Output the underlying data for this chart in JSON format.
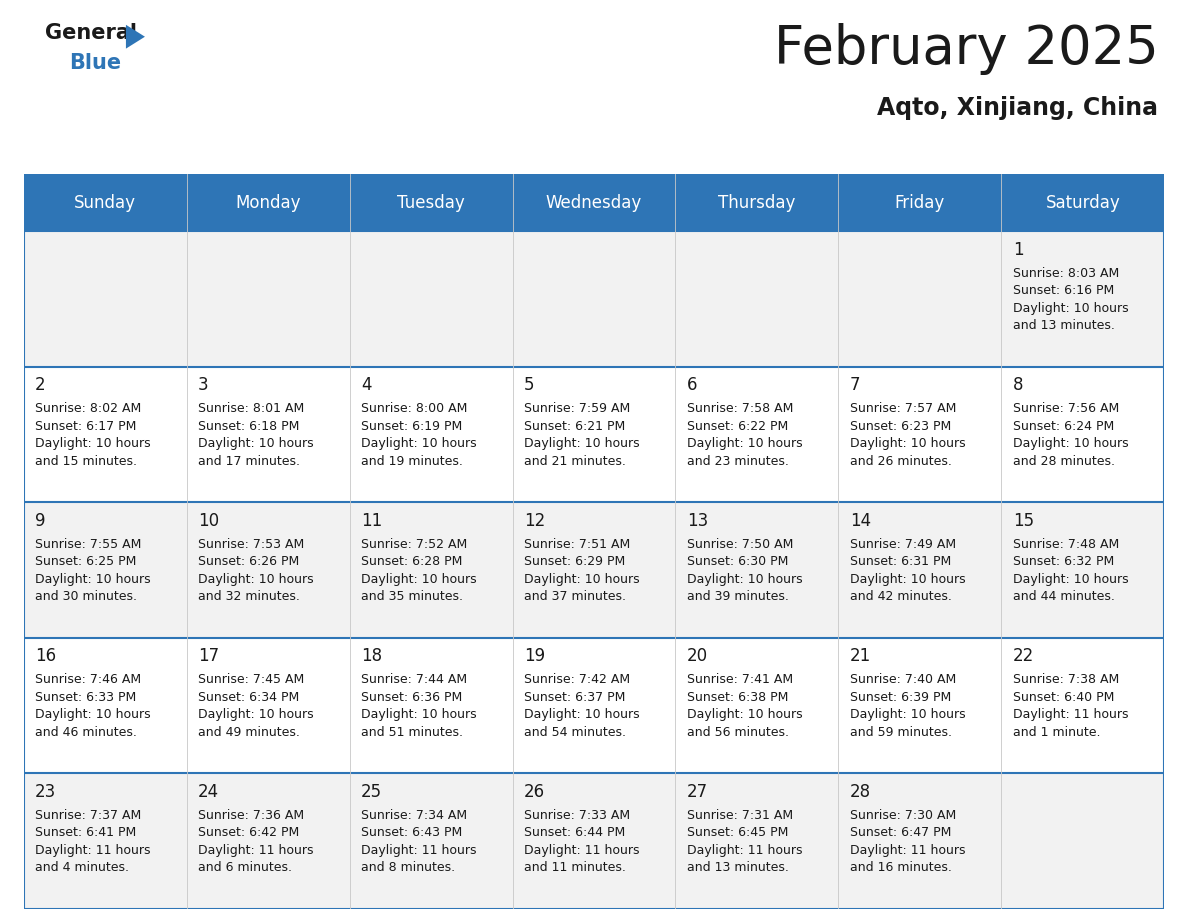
{
  "title": "February 2025",
  "subtitle": "Aqto, Xinjiang, China",
  "header_bg": "#2E75B6",
  "header_text_color": "#FFFFFF",
  "cell_bg": [
    "#F2F2F2",
    "#FFFFFF",
    "#F2F2F2",
    "#FFFFFF",
    "#F2F2F2"
  ],
  "day_names": [
    "Sunday",
    "Monday",
    "Tuesday",
    "Wednesday",
    "Thursday",
    "Friday",
    "Saturday"
  ],
  "days": [
    {
      "day": 1,
      "col": 6,
      "row": 0,
      "sunrise": "8:03 AM",
      "sunset": "6:16 PM",
      "daylight": "10 hours\nand 13 minutes."
    },
    {
      "day": 2,
      "col": 0,
      "row": 1,
      "sunrise": "8:02 AM",
      "sunset": "6:17 PM",
      "daylight": "10 hours\nand 15 minutes."
    },
    {
      "day": 3,
      "col": 1,
      "row": 1,
      "sunrise": "8:01 AM",
      "sunset": "6:18 PM",
      "daylight": "10 hours\nand 17 minutes."
    },
    {
      "day": 4,
      "col": 2,
      "row": 1,
      "sunrise": "8:00 AM",
      "sunset": "6:19 PM",
      "daylight": "10 hours\nand 19 minutes."
    },
    {
      "day": 5,
      "col": 3,
      "row": 1,
      "sunrise": "7:59 AM",
      "sunset": "6:21 PM",
      "daylight": "10 hours\nand 21 minutes."
    },
    {
      "day": 6,
      "col": 4,
      "row": 1,
      "sunrise": "7:58 AM",
      "sunset": "6:22 PM",
      "daylight": "10 hours\nand 23 minutes."
    },
    {
      "day": 7,
      "col": 5,
      "row": 1,
      "sunrise": "7:57 AM",
      "sunset": "6:23 PM",
      "daylight": "10 hours\nand 26 minutes."
    },
    {
      "day": 8,
      "col": 6,
      "row": 1,
      "sunrise": "7:56 AM",
      "sunset": "6:24 PM",
      "daylight": "10 hours\nand 28 minutes."
    },
    {
      "day": 9,
      "col": 0,
      "row": 2,
      "sunrise": "7:55 AM",
      "sunset": "6:25 PM",
      "daylight": "10 hours\nand 30 minutes."
    },
    {
      "day": 10,
      "col": 1,
      "row": 2,
      "sunrise": "7:53 AM",
      "sunset": "6:26 PM",
      "daylight": "10 hours\nand 32 minutes."
    },
    {
      "day": 11,
      "col": 2,
      "row": 2,
      "sunrise": "7:52 AM",
      "sunset": "6:28 PM",
      "daylight": "10 hours\nand 35 minutes."
    },
    {
      "day": 12,
      "col": 3,
      "row": 2,
      "sunrise": "7:51 AM",
      "sunset": "6:29 PM",
      "daylight": "10 hours\nand 37 minutes."
    },
    {
      "day": 13,
      "col": 4,
      "row": 2,
      "sunrise": "7:50 AM",
      "sunset": "6:30 PM",
      "daylight": "10 hours\nand 39 minutes."
    },
    {
      "day": 14,
      "col": 5,
      "row": 2,
      "sunrise": "7:49 AM",
      "sunset": "6:31 PM",
      "daylight": "10 hours\nand 42 minutes."
    },
    {
      "day": 15,
      "col": 6,
      "row": 2,
      "sunrise": "7:48 AM",
      "sunset": "6:32 PM",
      "daylight": "10 hours\nand 44 minutes."
    },
    {
      "day": 16,
      "col": 0,
      "row": 3,
      "sunrise": "7:46 AM",
      "sunset": "6:33 PM",
      "daylight": "10 hours\nand 46 minutes."
    },
    {
      "day": 17,
      "col": 1,
      "row": 3,
      "sunrise": "7:45 AM",
      "sunset": "6:34 PM",
      "daylight": "10 hours\nand 49 minutes."
    },
    {
      "day": 18,
      "col": 2,
      "row": 3,
      "sunrise": "7:44 AM",
      "sunset": "6:36 PM",
      "daylight": "10 hours\nand 51 minutes."
    },
    {
      "day": 19,
      "col": 3,
      "row": 3,
      "sunrise": "7:42 AM",
      "sunset": "6:37 PM",
      "daylight": "10 hours\nand 54 minutes."
    },
    {
      "day": 20,
      "col": 4,
      "row": 3,
      "sunrise": "7:41 AM",
      "sunset": "6:38 PM",
      "daylight": "10 hours\nand 56 minutes."
    },
    {
      "day": 21,
      "col": 5,
      "row": 3,
      "sunrise": "7:40 AM",
      "sunset": "6:39 PM",
      "daylight": "10 hours\nand 59 minutes."
    },
    {
      "day": 22,
      "col": 6,
      "row": 3,
      "sunrise": "7:38 AM",
      "sunset": "6:40 PM",
      "daylight": "11 hours\nand 1 minute."
    },
    {
      "day": 23,
      "col": 0,
      "row": 4,
      "sunrise": "7:37 AM",
      "sunset": "6:41 PM",
      "daylight": "11 hours\nand 4 minutes."
    },
    {
      "day": 24,
      "col": 1,
      "row": 4,
      "sunrise": "7:36 AM",
      "sunset": "6:42 PM",
      "daylight": "11 hours\nand 6 minutes."
    },
    {
      "day": 25,
      "col": 2,
      "row": 4,
      "sunrise": "7:34 AM",
      "sunset": "6:43 PM",
      "daylight": "11 hours\nand 8 minutes."
    },
    {
      "day": 26,
      "col": 3,
      "row": 4,
      "sunrise": "7:33 AM",
      "sunset": "6:44 PM",
      "daylight": "11 hours\nand 11 minutes."
    },
    {
      "day": 27,
      "col": 4,
      "row": 4,
      "sunrise": "7:31 AM",
      "sunset": "6:45 PM",
      "daylight": "11 hours\nand 13 minutes."
    },
    {
      "day": 28,
      "col": 5,
      "row": 4,
      "sunrise": "7:30 AM",
      "sunset": "6:47 PM",
      "daylight": "11 hours\nand 16 minutes."
    }
  ],
  "num_rows": 5,
  "num_cols": 7,
  "title_fontsize": 38,
  "subtitle_fontsize": 17,
  "day_header_fontsize": 12,
  "day_num_fontsize": 12,
  "cell_text_fontsize": 9,
  "line_color": "#2E75B6",
  "bg_color": "#FFFFFF",
  "text_color": "#1a1a1a"
}
